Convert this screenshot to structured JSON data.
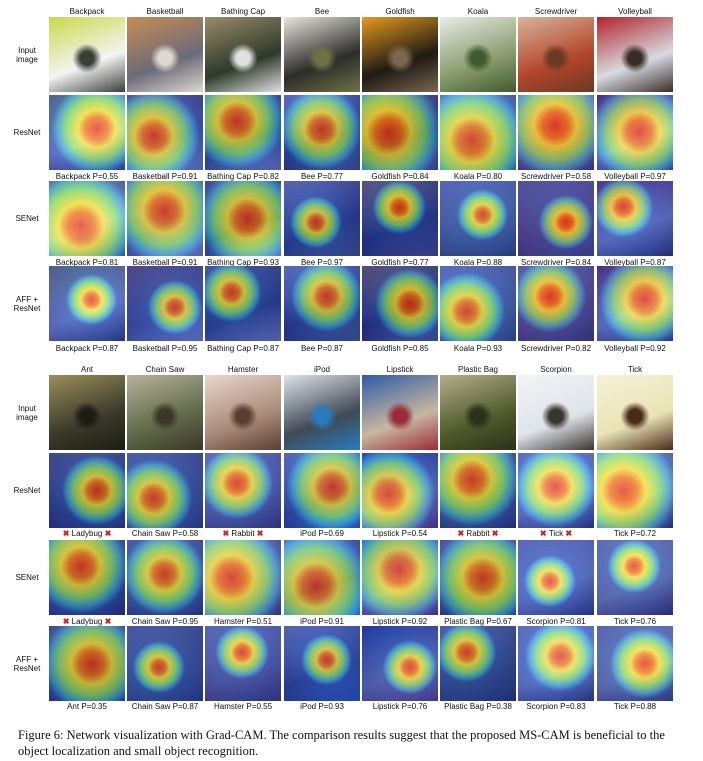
{
  "panels": [
    {
      "classes": [
        "Backpack",
        "Basketball",
        "Bathing Cap",
        "Bee",
        "Goldfish",
        "Koala",
        "Screwdriver",
        "Volleyball"
      ],
      "rows": [
        {
          "name": "Input\nimage",
          "labels": null
        },
        {
          "name": "ResNet",
          "labels": [
            {
              "text": "Backpack P=0.55",
              "wrong": false
            },
            {
              "text": "Basketball P=0.91",
              "wrong": false
            },
            {
              "text": "Bathing Cap P=0.82",
              "wrong": false
            },
            {
              "text": "Bee P=0.77",
              "wrong": false
            },
            {
              "text": "Goldfish P=0.84",
              "wrong": false
            },
            {
              "text": "Koala P=0.80",
              "wrong": false
            },
            {
              "text": "Screwdriver P=0.58",
              "wrong": false
            },
            {
              "text": "Volleyball P=0.97",
              "wrong": false
            }
          ]
        },
        {
          "name": "SENet",
          "labels": [
            {
              "text": "Backpack P=0.81",
              "wrong": false
            },
            {
              "text": "Basketball P=0.91",
              "wrong": false
            },
            {
              "text": "Bathing Cap P=0.93",
              "wrong": false
            },
            {
              "text": "Bee P=0.97",
              "wrong": false
            },
            {
              "text": "Goldfish P=0.77",
              "wrong": false
            },
            {
              "text": "Koala P=0.88",
              "wrong": false
            },
            {
              "text": "Screwdriver P=0.84",
              "wrong": false
            },
            {
              "text": "Volleyball P=0.87",
              "wrong": false
            }
          ]
        },
        {
          "name": "AFF +\nResNet",
          "labels": [
            {
              "text": "Backpack P=0.87",
              "wrong": false
            },
            {
              "text": "Basketball P=0.95",
              "wrong": false
            },
            {
              "text": "Bathing Cap P=0.87",
              "wrong": false
            },
            {
              "text": "Bee P=0.87",
              "wrong": false
            },
            {
              "text": "Goldfish P=0.85",
              "wrong": false
            },
            {
              "text": "Koala P=0.93",
              "wrong": false
            },
            {
              "text": "Screwdriver P=0.82",
              "wrong": false
            },
            {
              "text": "Volleyball P=0.92",
              "wrong": false
            }
          ]
        }
      ]
    },
    {
      "classes": [
        "Ant",
        "Chain Saw",
        "Hamster",
        "iPod",
        "Lipstick",
        "Plastic Bag",
        "Scorpion",
        "Tick"
      ],
      "rows": [
        {
          "name": "Input\nimage",
          "labels": null
        },
        {
          "name": "ResNet",
          "labels": [
            {
              "text": "Ladybug",
              "wrong": true
            },
            {
              "text": "Chain Saw P=0.58",
              "wrong": false
            },
            {
              "text": "Rabbit",
              "wrong": true
            },
            {
              "text": "iPod P=0.69",
              "wrong": false
            },
            {
              "text": "Lipstick P=0.54",
              "wrong": false
            },
            {
              "text": "Rabbit",
              "wrong": true
            },
            {
              "text": "Tick",
              "wrong": true
            },
            {
              "text": "Tick P=0.72",
              "wrong": false
            }
          ]
        },
        {
          "name": "SENet",
          "labels": [
            {
              "text": "Ladybug",
              "wrong": true
            },
            {
              "text": "Chain Saw P=0.95",
              "wrong": false
            },
            {
              "text": "Hamster P=0.51",
              "wrong": false
            },
            {
              "text": "iPod P=0.91",
              "wrong": false
            },
            {
              "text": "Lipstick P=0.92",
              "wrong": false
            },
            {
              "text": "Plastic Bag P=0.67",
              "wrong": false
            },
            {
              "text": "Scorpion P=0.81",
              "wrong": false
            },
            {
              "text": "Tick P=0.76",
              "wrong": false
            }
          ]
        },
        {
          "name": "AFF +\nResNet",
          "labels": [
            {
              "text": "Ant P=0.35",
              "wrong": false
            },
            {
              "text": "Chain Saw P=0.87",
              "wrong": false
            },
            {
              "text": "Hamster P=0.55",
              "wrong": false
            },
            {
              "text": "iPod P=0.93",
              "wrong": false
            },
            {
              "text": "Lipstick P=0.76",
              "wrong": false
            },
            {
              "text": "Plastic Bag P=0.38",
              "wrong": false
            },
            {
              "text": "Scorpion P=0.83",
              "wrong": false
            },
            {
              "text": "Tick P=0.88",
              "wrong": false
            }
          ]
        }
      ]
    }
  ],
  "wrong_mark": "✖",
  "caption": "Figure 6: Network visualization with Grad-CAM. The comparison results suggest that the proposed MS-CAM is beneficial to the object localization and small object recognition."
}
